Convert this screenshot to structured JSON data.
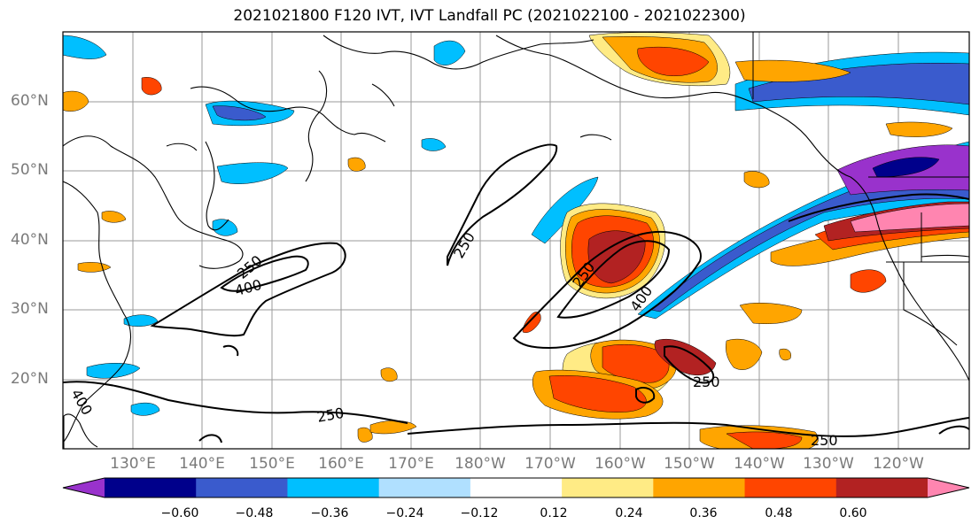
{
  "title": "2021021800 F120 IVT, IVT Landfall PC (2021022100 - 2021022300)",
  "lat_labels": [
    {
      "text": "60°N",
      "lat": 60
    },
    {
      "text": "50°N",
      "lat": 50
    },
    {
      "text": "40°N",
      "lat": 40
    },
    {
      "text": "30°N",
      "lat": 30
    },
    {
      "text": "20°N",
      "lat": 20
    }
  ],
  "lon_labels": [
    {
      "text": "130°E",
      "lon": 130
    },
    {
      "text": "140°E",
      "lon": 140
    },
    {
      "text": "150°E",
      "lon": 150
    },
    {
      "text": "160°E",
      "lon": 160
    },
    {
      "text": "170°E",
      "lon": 170
    },
    {
      "text": "180°W",
      "lon": 180
    },
    {
      "text": "170°W",
      "lon": 190
    },
    {
      "text": "160°W",
      "lon": 200
    },
    {
      "text": "150°W",
      "lon": 210
    },
    {
      "text": "140°W",
      "lon": 220
    },
    {
      "text": "130°W",
      "lon": 230
    },
    {
      "text": "120°W",
      "lon": 240
    }
  ],
  "contour_labels": [
    "250",
    "250",
    "250",
    "250",
    "250",
    "400",
    "400",
    "400"
  ],
  "colorbar": {
    "colors": [
      "#9932cc",
      "#00008b",
      "#3a5bcd",
      "#00bfff",
      "#b0e0ff",
      "#ffffff",
      "#ffeb85",
      "#ffa500",
      "#ff4500",
      "#b22222",
      "#ff85b0"
    ],
    "ticks": [
      "−0.60",
      "−0.48",
      "−0.36",
      "−0.24",
      "−0.12",
      "0.12",
      "0.24",
      "0.36",
      "0.48",
      "0.60"
    ]
  }
}
